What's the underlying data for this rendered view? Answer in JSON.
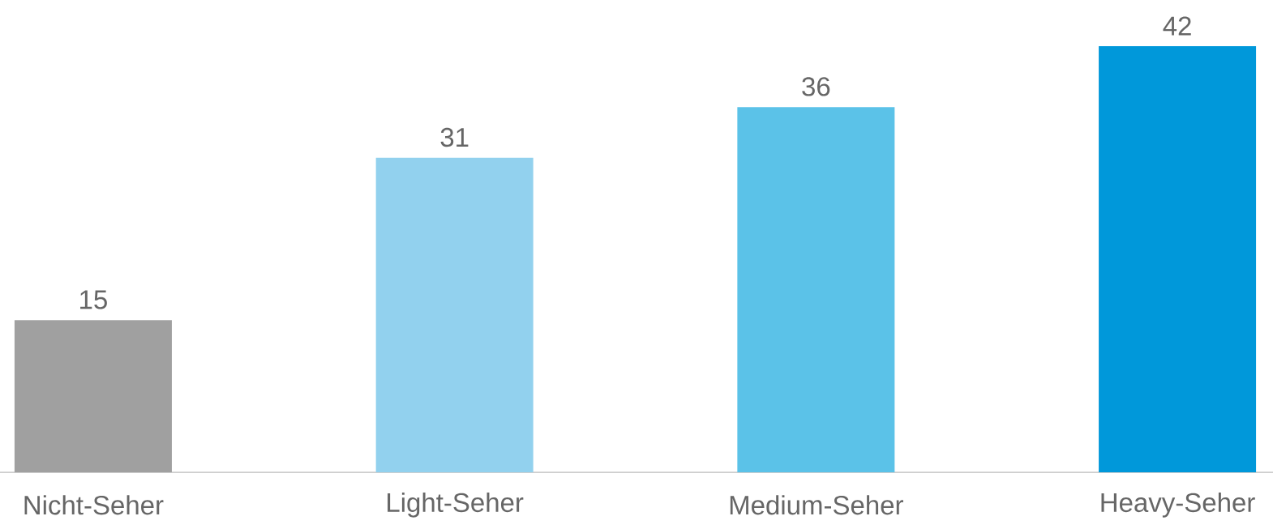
{
  "chart_data": {
    "type": "bar",
    "categories": [
      "Nicht-Seher",
      "Light-Seher",
      "Medium-Seher",
      "Heavy-Seher"
    ],
    "values": [
      15,
      31,
      36,
      42
    ],
    "colors": [
      "#a0a0a0",
      "#92d1ee",
      "#5bc2e8",
      "#0098da"
    ],
    "data_labels": true
  }
}
